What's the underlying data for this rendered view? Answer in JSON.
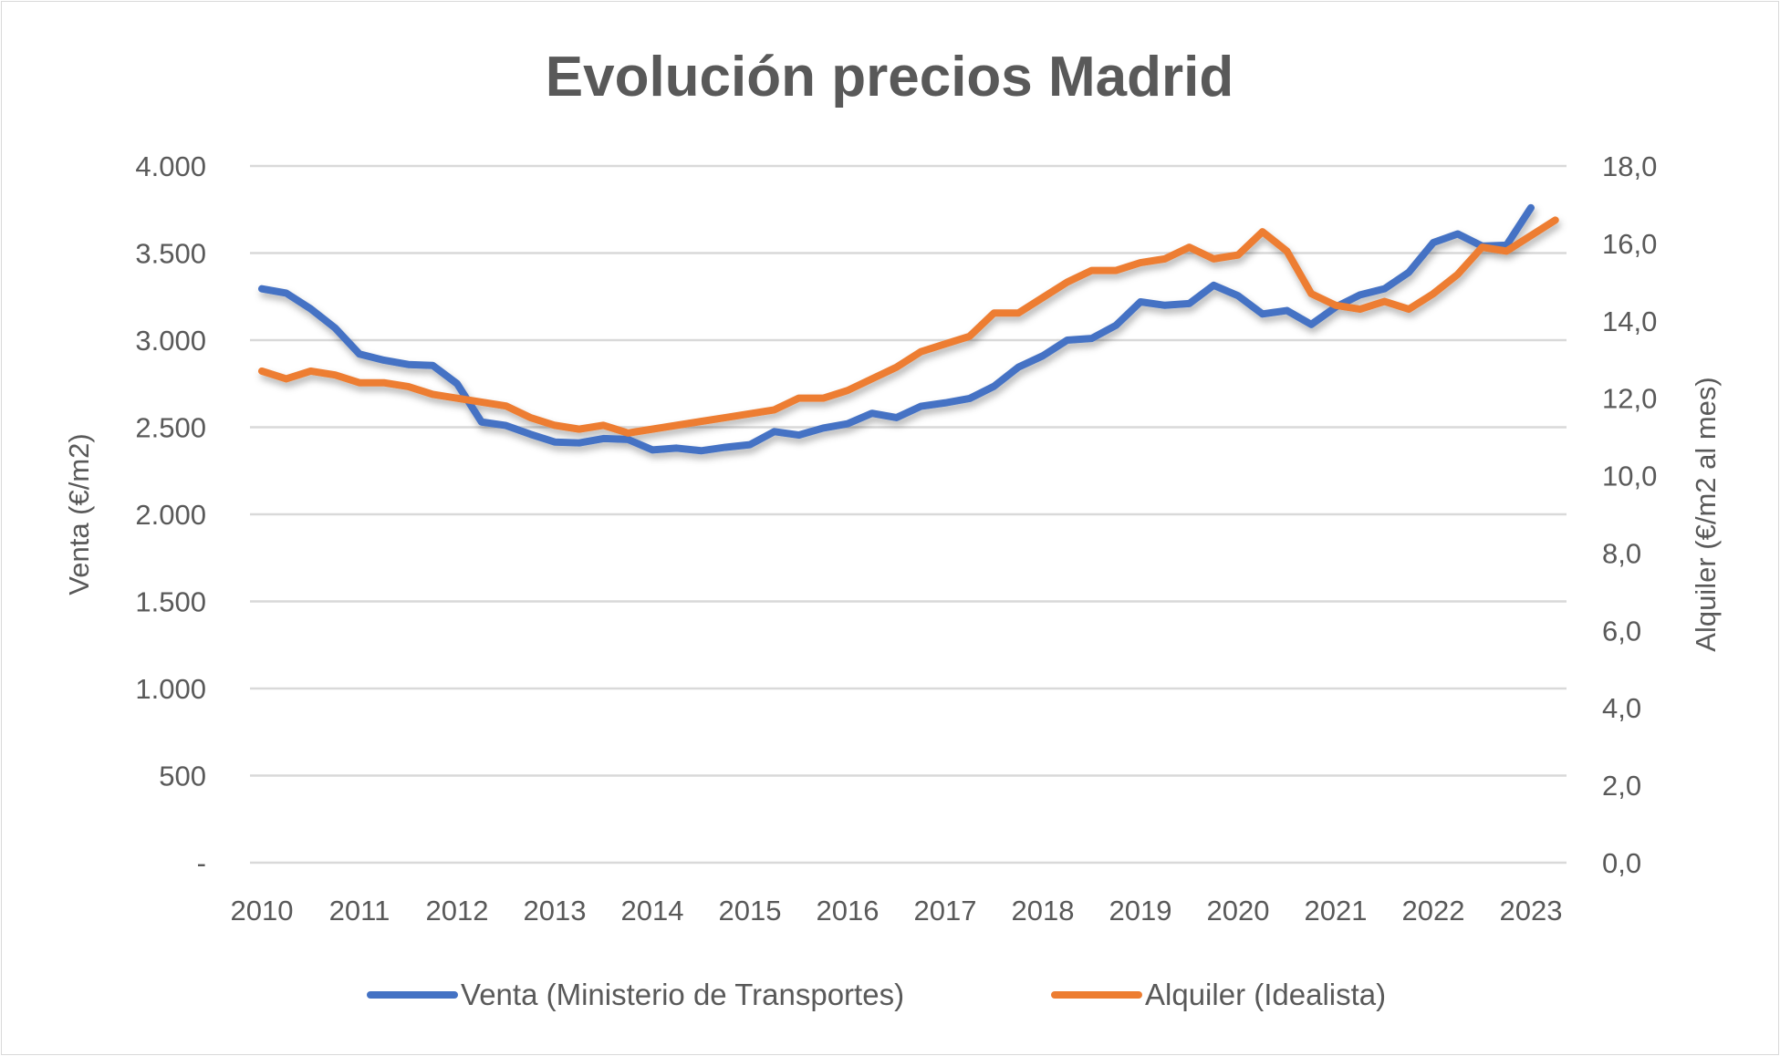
{
  "chart_data": {
    "type": "line",
    "title": "Evolución precios Madrid",
    "xlabel": "",
    "ylabel_left": "Venta (€/m2)",
    "ylabel_right": "Alquiler (€/m2 al mes)",
    "x_ticks": [
      "2010",
      "2011",
      "2012",
      "2013",
      "2014",
      "2015",
      "2016",
      "2017",
      "2018",
      "2019",
      "2020",
      "2021",
      "2022",
      "2023"
    ],
    "y_left_ticks": [
      "-",
      "500",
      "1.000",
      "1.500",
      "2.000",
      "2.500",
      "3.000",
      "3.500",
      "4.000"
    ],
    "y_right_ticks": [
      "0,0",
      "2,0",
      "4,0",
      "6,0",
      "8,0",
      "10,0",
      "12,0",
      "14,0",
      "16,0",
      "18,0"
    ],
    "ylim_left": [
      0,
      4000
    ],
    "ylim_right": [
      0,
      18
    ],
    "x_frequency": "quarterly, starting 2010",
    "grid": true,
    "legend": "bottom",
    "series": [
      {
        "name": "Venta (Ministerio de Transportes)",
        "axis": "left",
        "color": "#4472C4",
        "values": [
          3295,
          3270,
          3180,
          3070,
          2920,
          2885,
          2860,
          2855,
          2750,
          2530,
          2510,
          2460,
          2415,
          2410,
          2435,
          2430,
          2370,
          2380,
          2365,
          2385,
          2400,
          2475,
          2455,
          2495,
          2520,
          2580,
          2555,
          2620,
          2640,
          2665,
          2735,
          2845,
          2910,
          3000,
          3010,
          3085,
          3220,
          3200,
          3210,
          3315,
          3255,
          3150,
          3170,
          3090,
          3190,
          3260,
          3295,
          3390,
          3560,
          3610,
          3540,
          3545,
          3760
        ]
      },
      {
        "name": "Alquiler (Idealista)",
        "axis": "right",
        "color": "#ED7D31",
        "values": [
          12.7,
          12.5,
          12.7,
          12.6,
          12.4,
          12.4,
          12.3,
          12.1,
          12.0,
          11.9,
          11.8,
          11.5,
          11.3,
          11.2,
          11.3,
          11.1,
          11.2,
          11.3,
          11.4,
          11.5,
          11.6,
          11.7,
          12.0,
          12.0,
          12.2,
          12.5,
          12.8,
          13.2,
          13.4,
          13.6,
          14.2,
          14.2,
          14.6,
          15.0,
          15.3,
          15.3,
          15.5,
          15.6,
          15.9,
          15.6,
          15.7,
          16.3,
          15.8,
          14.7,
          14.4,
          14.3,
          14.5,
          14.3,
          14.7,
          15.2,
          15.9,
          15.8,
          16.2,
          16.6
        ]
      }
    ]
  }
}
